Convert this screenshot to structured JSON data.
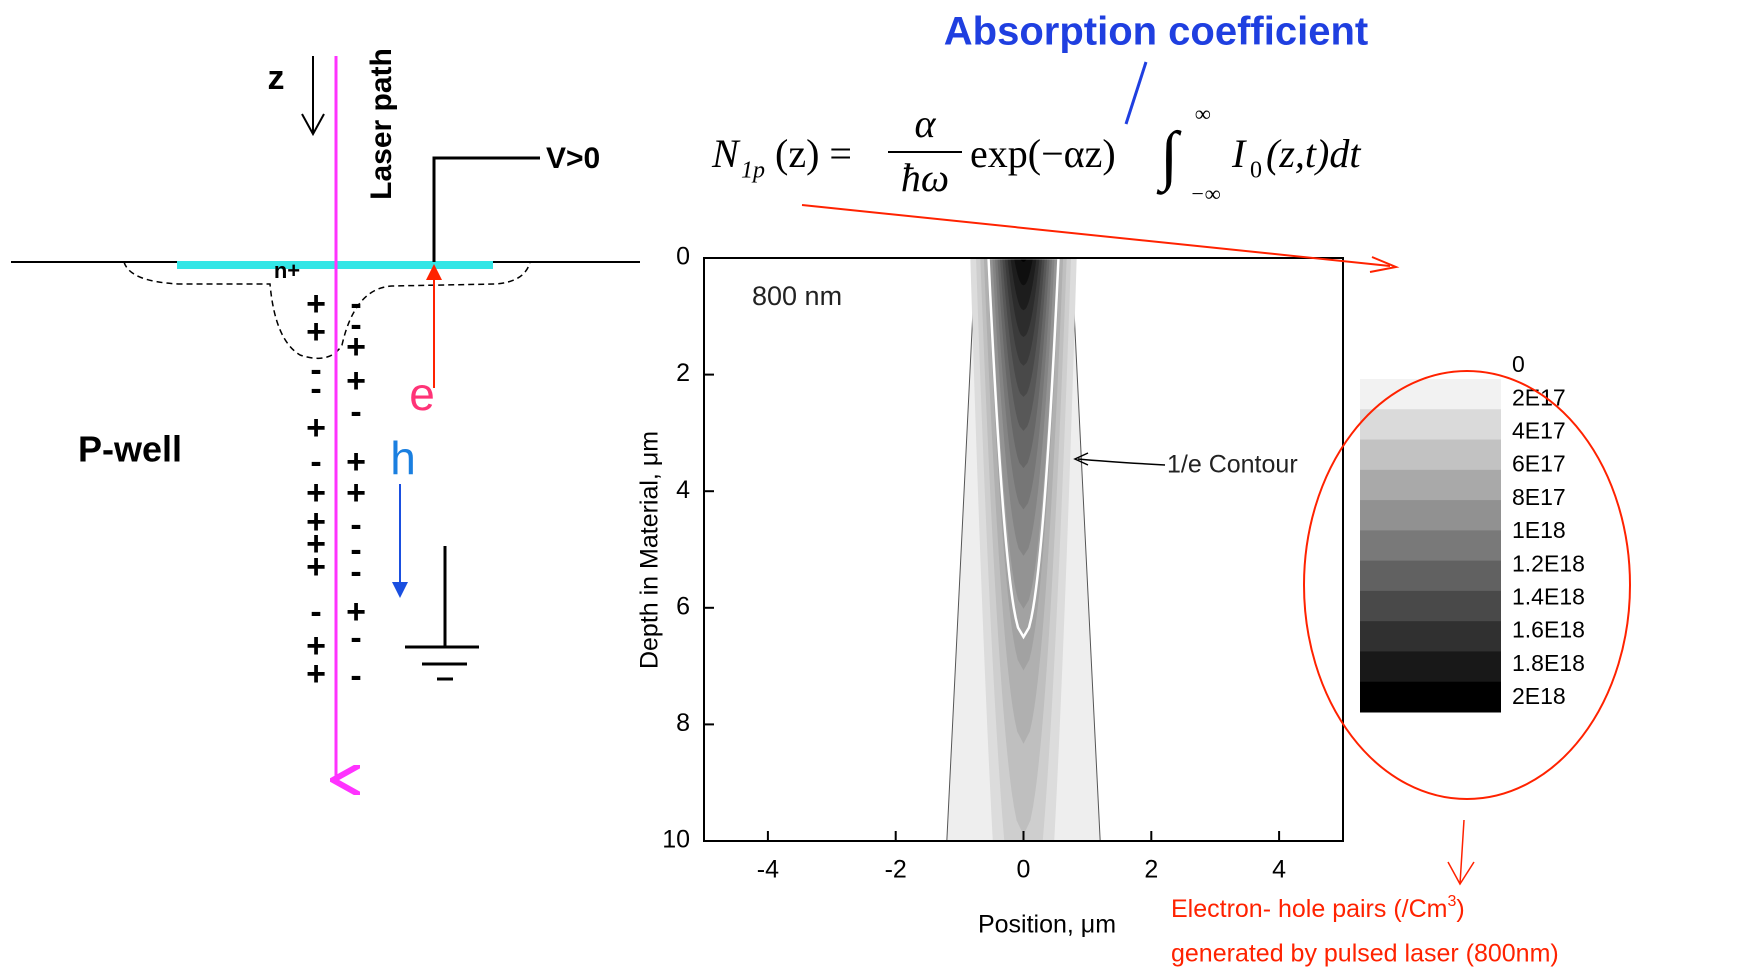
{
  "header": {
    "title": "Absorption coefficient"
  },
  "equation": {
    "lhs": "N",
    "lhs_sub": "1p",
    "lhs_arg": "(z) =",
    "numerator": "α",
    "denominator": "ħω",
    "factor": "exp(−αz)",
    "integral": "∫",
    "upper": "∞",
    "lower": "−∞",
    "integrand": "I",
    "integrand_sub": "0",
    "integrand_arg": "(z,t)dt"
  },
  "diagram": {
    "depth_axis": "z",
    "laser": "Laser path",
    "bias": "V>0",
    "implant": "n+",
    "well": "P-well",
    "electron": "e",
    "hole": "h",
    "charges_left": [
      "+",
      "+",
      "-",
      "-",
      "+",
      "-",
      "+",
      "+",
      "+",
      "+",
      "-",
      "+",
      "+"
    ],
    "charges_right": [
      "-",
      "-",
      "+",
      "+",
      "-",
      "+",
      "+",
      "-",
      "-",
      "-",
      "+",
      "-",
      "-"
    ]
  },
  "chart_data": {
    "type": "contour",
    "wavelength_label": "800 nm",
    "contour_label": "1/e Contour",
    "xlabel": "Position, μm",
    "ylabel": "Depth in Material, μm",
    "xlim": [
      -5,
      5
    ],
    "ylim": [
      10,
      0
    ],
    "xticks": [
      -4,
      -2,
      0,
      2,
      4
    ],
    "yticks": [
      0,
      2,
      4,
      6,
      8,
      10
    ],
    "colorbar_ticks": [
      0,
      {
        "value": 2e+17,
        "label": "2E17"
      },
      {
        "value": 4e+17,
        "label": "4E17"
      },
      {
        "value": 6e+17,
        "label": "6E17"
      },
      {
        "value": 8e+17,
        "label": "8E17"
      },
      {
        "value": 1e+18,
        "label": "1E18"
      },
      {
        "value": 1.2e+18,
        "label": "1.2E18"
      },
      {
        "value": 1.4e+18,
        "label": "1.4E18"
      },
      {
        "value": 1.6e+18,
        "label": "1.6E18"
      },
      {
        "value": 1.8e+18,
        "label": "1.8E18"
      },
      {
        "value": 2e+18,
        "label": "2E18"
      }
    ]
  },
  "annotation": {
    "line1": "Electron- hole pairs (/Cm",
    "line1_sup": "3",
    "line1_end": ")",
    "line2": "generated by pulsed laser (800nm)"
  }
}
